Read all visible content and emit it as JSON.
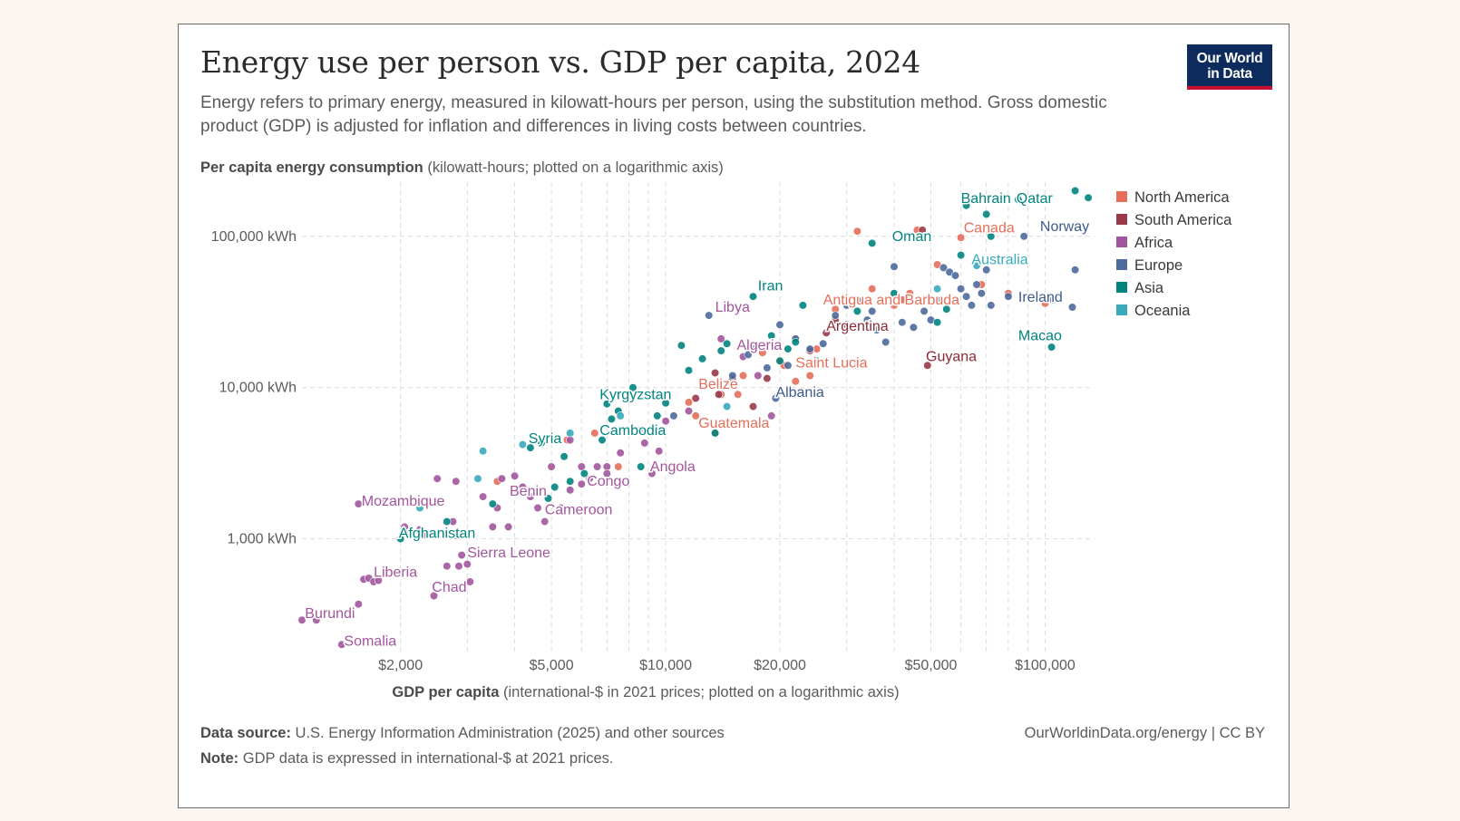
{
  "header": {
    "title": "Energy use per person vs. GDP per capita, 2024",
    "subtitle": "Energy refers to primary energy, measured in kilowatt-hours per person, using the substitution method. Gross domestic product (GDP) is adjusted for inflation and differences in living costs between countries.",
    "logo_line1": "Our World",
    "logo_line2": "in Data"
  },
  "axes": {
    "y_title_bold": "Per capita energy consumption",
    "y_title_rest": " (kilowatt-hours; plotted on a logarithmic axis)",
    "x_title_bold": "GDP per capita",
    "x_title_rest": " (international-$ in 2021 prices; plotted on a logarithmic axis)"
  },
  "footer": {
    "source_bold": "Data source:",
    "source_rest": " U.S. Energy Information Administration (2025) and other sources",
    "note_bold": "Note:",
    "note_rest": " GDP data is expressed in international-$ at 2021 prices.",
    "credit": "OurWorldinData.org/energy | CC BY"
  },
  "chart_data": {
    "type": "scatter",
    "x_scale": "log",
    "y_scale": "log",
    "xlim": [
      1100,
      135000
    ],
    "ylim": [
      190,
      210000
    ],
    "grid": true,
    "legend_position": "right",
    "x_ticks": [
      {
        "value": 2000,
        "label": "$2,000"
      },
      {
        "value": 5000,
        "label": "$5,000"
      },
      {
        "value": 10000,
        "label": "$10,000"
      },
      {
        "value": 20000,
        "label": "$20,000"
      },
      {
        "value": 50000,
        "label": "$50,000"
      },
      {
        "value": 100000,
        "label": "$100,000"
      }
    ],
    "x_minor_gridlines": [
      3000,
      4000,
      6000,
      7000,
      8000,
      9000,
      30000,
      40000,
      60000,
      70000,
      80000,
      90000
    ],
    "y_ticks": [
      {
        "value": 1000,
        "label": "1,000 kWh"
      },
      {
        "value": 10000,
        "label": "10,000 kWh"
      },
      {
        "value": 100000,
        "label": "100,000 kWh"
      }
    ],
    "colors": {
      "North America": "#e56e5a",
      "South America": "#9a3a48",
      "Africa": "#a2559c",
      "Europe": "#4c6a9c",
      "Asia": "#00847e",
      "Oceania": "#38aaba"
    },
    "label_colors": {
      "North America": "#e56e5a",
      "South America": "#8c2a38",
      "Africa": "#a2559c",
      "Europe": "#3d5a8c",
      "Asia": "#00847e",
      "Oceania": "#38aaba"
    },
    "legend": [
      "North America",
      "South America",
      "Africa",
      "Europe",
      "Asia",
      "Oceania"
    ],
    "series": [
      {
        "name": "North America",
        "points": [
          [
            5500,
            4500
          ],
          [
            6500,
            5000
          ],
          [
            7500,
            3000
          ],
          [
            12000,
            6500
          ],
          [
            14000,
            9000
          ],
          [
            16000,
            12000
          ],
          [
            18000,
            17000
          ],
          [
            20000,
            15000
          ],
          [
            22000,
            11000
          ],
          [
            25000,
            18000
          ],
          [
            28000,
            33000
          ],
          [
            30000,
            38000
          ],
          [
            32000,
            108000
          ],
          [
            35000,
            45000
          ],
          [
            40000,
            35000
          ],
          [
            42000,
            38000
          ],
          [
            44000,
            42000
          ],
          [
            46000,
            110000
          ],
          [
            52000,
            65000
          ],
          [
            60000,
            98000
          ],
          [
            68000,
            48000
          ],
          [
            80000,
            42000
          ],
          [
            100000,
            36000
          ],
          [
            2800,
            1100
          ],
          [
            3600,
            2400
          ],
          [
            11500,
            8000
          ],
          [
            13500,
            5000
          ],
          [
            20500,
            14000
          ],
          [
            24000,
            12000
          ],
          [
            2800,
            1050
          ],
          [
            15500,
            9000
          ]
        ]
      },
      {
        "name": "South America",
        "points": [
          [
            12000,
            8500
          ],
          [
            13500,
            12500
          ],
          [
            15000,
            11500
          ],
          [
            17000,
            7500
          ],
          [
            18500,
            11500
          ],
          [
            22000,
            21000
          ],
          [
            24000,
            17500
          ],
          [
            26500,
            23000
          ],
          [
            28000,
            28000
          ],
          [
            32000,
            14000
          ],
          [
            49000,
            14000
          ],
          [
            47500,
            110000
          ],
          [
            30000,
            26000
          ],
          [
            13800,
            9000
          ]
        ]
      },
      {
        "name": "Africa",
        "points": [
          [
            1100,
            290
          ],
          [
            1200,
            290
          ],
          [
            1400,
            200
          ],
          [
            1550,
            370
          ],
          [
            1600,
            540
          ],
          [
            1650,
            550
          ],
          [
            1700,
            520
          ],
          [
            1750,
            530
          ],
          [
            1550,
            1700
          ],
          [
            1800,
            1800
          ],
          [
            2050,
            1200
          ],
          [
            2250,
            1150
          ],
          [
            2350,
            1050
          ],
          [
            2450,
            420
          ],
          [
            2650,
            660
          ],
          [
            2750,
            1300
          ],
          [
            2850,
            660
          ],
          [
            2900,
            780
          ],
          [
            3000,
            680
          ],
          [
            3050,
            520
          ],
          [
            3300,
            1900
          ],
          [
            3500,
            1200
          ],
          [
            3600,
            1600
          ],
          [
            3700,
            2500
          ],
          [
            3850,
            1200
          ],
          [
            4000,
            2600
          ],
          [
            4400,
            1900
          ],
          [
            4600,
            1600
          ],
          [
            4800,
            1300
          ],
          [
            5000,
            3000
          ],
          [
            5300,
            1600
          ],
          [
            5600,
            2100
          ],
          [
            6000,
            2300
          ],
          [
            6300,
            2500
          ],
          [
            6600,
            3000
          ],
          [
            7000,
            3000
          ],
          [
            7600,
            3700
          ],
          [
            8500,
            5200
          ],
          [
            8800,
            4300
          ],
          [
            9200,
            2700
          ],
          [
            9600,
            3800
          ],
          [
            10000,
            6000
          ],
          [
            11500,
            7000
          ],
          [
            14000,
            21000
          ],
          [
            16000,
            16000
          ],
          [
            17500,
            12000
          ],
          [
            19000,
            6500
          ],
          [
            2800,
            2400
          ],
          [
            4200,
            2200
          ],
          [
            5600,
            4500
          ],
          [
            6000,
            3000
          ],
          [
            7000,
            2700
          ],
          [
            2500,
            2500
          ]
        ]
      },
      {
        "name": "Europe",
        "points": [
          [
            10500,
            6500
          ],
          [
            13000,
            30000
          ],
          [
            15000,
            12000
          ],
          [
            17000,
            18000
          ],
          [
            18500,
            13500
          ],
          [
            19500,
            8500
          ],
          [
            21000,
            14000
          ],
          [
            22000,
            21000
          ],
          [
            24000,
            18000
          ],
          [
            26000,
            19500
          ],
          [
            28000,
            30000
          ],
          [
            30000,
            35000
          ],
          [
            32000,
            38000
          ],
          [
            34000,
            28000
          ],
          [
            35000,
            32000
          ],
          [
            36000,
            24000
          ],
          [
            38000,
            20000
          ],
          [
            40000,
            63000
          ],
          [
            42000,
            27000
          ],
          [
            45000,
            25000
          ],
          [
            48000,
            32000
          ],
          [
            50000,
            28000
          ],
          [
            52000,
            38000
          ],
          [
            54000,
            62000
          ],
          [
            56000,
            58000
          ],
          [
            58000,
            55000
          ],
          [
            60000,
            45000
          ],
          [
            62000,
            40000
          ],
          [
            64000,
            35000
          ],
          [
            66000,
            48000
          ],
          [
            68000,
            42000
          ],
          [
            70000,
            60000
          ],
          [
            72000,
            35000
          ],
          [
            80000,
            40000
          ],
          [
            88000,
            100000
          ],
          [
            105000,
            38000
          ],
          [
            118000,
            34000
          ],
          [
            120000,
            60000
          ],
          [
            16500,
            16500
          ],
          [
            20000,
            26000
          ]
        ]
      },
      {
        "name": "Asia",
        "points": [
          [
            2000,
            1000
          ],
          [
            2650,
            1300
          ],
          [
            3500,
            1700
          ],
          [
            4200,
            2000
          ],
          [
            4400,
            4000
          ],
          [
            4700,
            4300
          ],
          [
            4900,
            1850
          ],
          [
            5100,
            2200
          ],
          [
            5400,
            3500
          ],
          [
            5600,
            2400
          ],
          [
            6100,
            2700
          ],
          [
            6800,
            4500
          ],
          [
            7000,
            7800
          ],
          [
            7200,
            6200
          ],
          [
            7500,
            7000
          ],
          [
            8200,
            10000
          ],
          [
            8600,
            3000
          ],
          [
            9500,
            6500
          ],
          [
            10000,
            7900
          ],
          [
            11000,
            19000
          ],
          [
            11500,
            13000
          ],
          [
            12500,
            15500
          ],
          [
            13500,
            5000
          ],
          [
            14000,
            17500
          ],
          [
            14500,
            19500
          ],
          [
            17000,
            40000
          ],
          [
            18000,
            48000
          ],
          [
            19000,
            22000
          ],
          [
            20000,
            15000
          ],
          [
            21000,
            18000
          ],
          [
            22000,
            20000
          ],
          [
            23000,
            35000
          ],
          [
            25000,
            15000
          ],
          [
            32000,
            32000
          ],
          [
            35000,
            90000
          ],
          [
            40000,
            42000
          ],
          [
            52000,
            27000
          ],
          [
            55000,
            33000
          ],
          [
            60000,
            75000
          ],
          [
            62000,
            160000
          ],
          [
            70000,
            140000
          ],
          [
            72000,
            100000
          ],
          [
            85000,
            175000
          ],
          [
            120000,
            200000
          ],
          [
            130000,
            180000
          ],
          [
            104000,
            18500
          ]
        ]
      },
      {
        "name": "Oceania",
        "points": [
          [
            2250,
            1600
          ],
          [
            3200,
            2500
          ],
          [
            3300,
            3800
          ],
          [
            4200,
            4200
          ],
          [
            5600,
            5000
          ],
          [
            7600,
            6500
          ],
          [
            14500,
            7500
          ],
          [
            52000,
            45000
          ],
          [
            66000,
            64000
          ]
        ]
      }
    ],
    "labels": [
      {
        "text": "Bahrain",
        "group": "Asia",
        "x": 60000,
        "y": 178000
      },
      {
        "text": "Qatar",
        "group": "Asia",
        "x": 84000,
        "y": 178000
      },
      {
        "text": "Canada",
        "group": "North America",
        "x": 61000,
        "y": 114000
      },
      {
        "text": "Norway",
        "group": "Europe",
        "x": 97000,
        "y": 116000
      },
      {
        "text": "Oman",
        "group": "Asia",
        "x": 39500,
        "y": 100000
      },
      {
        "text": "Australia",
        "group": "Oceania",
        "x": 64000,
        "y": 70000
      },
      {
        "text": "Iran",
        "group": "Asia",
        "x": 17500,
        "y": 47000
      },
      {
        "text": "Antigua and Barbuda",
        "group": "North America",
        "x": 26000,
        "y": 38000
      },
      {
        "text": "Ireland",
        "group": "Europe",
        "x": 85000,
        "y": 39500
      },
      {
        "text": "Libya",
        "group": "Africa",
        "x": 13500,
        "y": 34000
      },
      {
        "text": "Argentina",
        "group": "South America",
        "x": 26500,
        "y": 25500
      },
      {
        "text": "Macao",
        "group": "Asia",
        "x": 85000,
        "y": 22000
      },
      {
        "text": "Algeria",
        "group": "Africa",
        "x": 15400,
        "y": 19000
      },
      {
        "text": "Saint Lucia",
        "group": "North America",
        "x": 22000,
        "y": 14600
      },
      {
        "text": "Guyana",
        "group": "South America",
        "x": 48500,
        "y": 16000
      },
      {
        "text": "Belize",
        "group": "North America",
        "x": 12200,
        "y": 10500
      },
      {
        "text": "Albania",
        "group": "Europe",
        "x": 19500,
        "y": 9300
      },
      {
        "text": "Kyrgyzstan",
        "group": "Asia",
        "x": 6700,
        "y": 9000
      },
      {
        "text": "Guatemala",
        "group": "North America",
        "x": 12200,
        "y": 5800
      },
      {
        "text": "Cambodia",
        "group": "Asia",
        "x": 6700,
        "y": 5200
      },
      {
        "text": "Syria",
        "group": "Asia",
        "x": 4350,
        "y": 4600
      },
      {
        "text": "Angola",
        "group": "Africa",
        "x": 9100,
        "y": 3000
      },
      {
        "text": "Congo",
        "group": "Africa",
        "x": 6200,
        "y": 2400
      },
      {
        "text": "Benin",
        "group": "Africa",
        "x": 3880,
        "y": 2060
      },
      {
        "text": "Mozambique",
        "group": "Africa",
        "x": 1580,
        "y": 1770
      },
      {
        "text": "Cameroon",
        "group": "Africa",
        "x": 4800,
        "y": 1560
      },
      {
        "text": "Afghanistan",
        "group": "Asia",
        "x": 1980,
        "y": 1090
      },
      {
        "text": "Sierra Leone",
        "group": "Africa",
        "x": 3000,
        "y": 810
      },
      {
        "text": "Liberia",
        "group": "Africa",
        "x": 1700,
        "y": 600
      },
      {
        "text": "Chad",
        "group": "Africa",
        "x": 2420,
        "y": 480
      },
      {
        "text": "Burundi",
        "group": "Africa",
        "x": 1120,
        "y": 320
      },
      {
        "text": "Somalia",
        "group": "Africa",
        "x": 1420,
        "y": 210
      }
    ]
  }
}
